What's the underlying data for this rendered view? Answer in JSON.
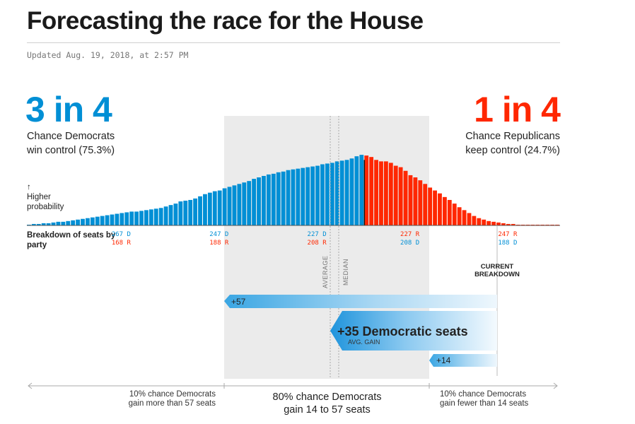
{
  "header": {
    "title": "Forecasting the race for the House",
    "updated": "Updated Aug. 19, 2018, at 2:57 PM"
  },
  "dem": {
    "odds": "3 in 4",
    "line1": "Chance Democrats",
    "line2": "win control (75.3%)",
    "color": "#008fd5"
  },
  "rep": {
    "odds": "1 in 4",
    "line1": "Chance Republicans",
    "line2": "keep control (24.7%)",
    "color": "#ff2700"
  },
  "labels": {
    "higher_arrow": "↑",
    "higher1": "Higher",
    "higher2": "probability",
    "breakdown": "Breakdown of seats by party",
    "average": "AVERAGE",
    "median": "MEDIAN",
    "current1": "CURRENT",
    "current2": "BREAKDOWN"
  },
  "chart_data": {
    "type": "bar",
    "x_label": "Breakdown of seats by party",
    "x_axis": "Democratic seats",
    "x_range": [
      286,
      177
    ],
    "majority_threshold": 218,
    "average_dem_seats": 229,
    "median_dem_seats": 227,
    "current_dem_seats": 193,
    "ticks": [
      {
        "dem": "267 D",
        "rep": "168 R",
        "dem_seats": 267
      },
      {
        "dem": "247 D",
        "rep": "188 R",
        "dem_seats": 247
      },
      {
        "dem": "227 D",
        "rep": "208 R",
        "dem_seats": 227
      },
      {
        "rep": "227 R",
        "dem": "208 D",
        "dem_seats": 208
      },
      {
        "rep": "247 R",
        "dem": "188 D",
        "dem_seats": 188
      }
    ],
    "relative_probability": [
      0.01,
      0.02,
      0.02,
      0.03,
      0.03,
      0.04,
      0.05,
      0.05,
      0.06,
      0.07,
      0.08,
      0.09,
      0.1,
      0.11,
      0.12,
      0.13,
      0.14,
      0.15,
      0.16,
      0.17,
      0.18,
      0.19,
      0.19,
      0.2,
      0.21,
      0.22,
      0.23,
      0.24,
      0.26,
      0.28,
      0.3,
      0.33,
      0.34,
      0.35,
      0.37,
      0.4,
      0.43,
      0.45,
      0.47,
      0.48,
      0.51,
      0.53,
      0.55,
      0.57,
      0.59,
      0.61,
      0.64,
      0.66,
      0.68,
      0.7,
      0.71,
      0.73,
      0.74,
      0.76,
      0.77,
      0.78,
      0.79,
      0.8,
      0.81,
      0.82,
      0.84,
      0.85,
      0.86,
      0.88,
      0.89,
      0.9,
      0.92,
      0.95,
      0.97,
      0.96,
      0.94,
      0.9,
      0.88,
      0.88,
      0.86,
      0.82,
      0.8,
      0.75,
      0.69,
      0.66,
      0.62,
      0.57,
      0.52,
      0.48,
      0.44,
      0.39,
      0.35,
      0.3,
      0.25,
      0.21,
      0.17,
      0.13,
      0.1,
      0.08,
      0.06,
      0.05,
      0.04,
      0.03,
      0.02,
      0.02,
      0.01,
      0.01,
      0.01,
      0.01,
      0.01,
      0.01,
      0.01,
      0.01,
      0.01
    ],
    "dem_color": "#008fd5",
    "rep_color": "#ff2700",
    "ranges": [
      {
        "label": "+57"
      },
      {
        "label": "+35 Democratic seats",
        "sublabel": "AVG. GAIN"
      },
      {
        "label": "+14"
      }
    ],
    "notes": {
      "left1": "10% chance Democrats",
      "left2": "gain more than 57 seats",
      "mid1": "80% chance Democrats",
      "mid2": "gain 14 to 57 seats",
      "right1": "10% chance Democrats",
      "right2": "gain fewer than 14 seats"
    }
  }
}
